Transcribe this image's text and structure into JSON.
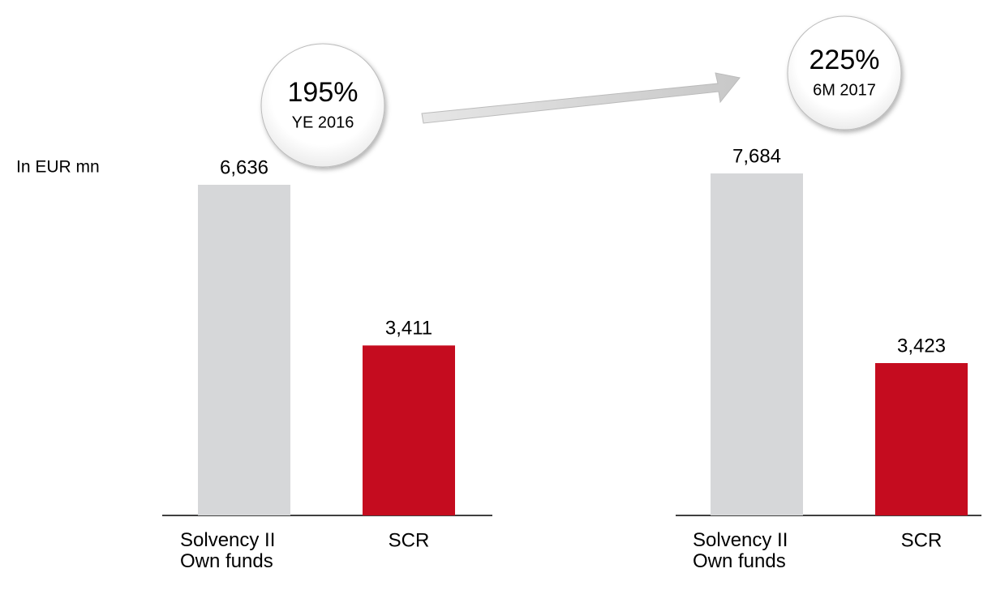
{
  "unit_label": "In EUR mn",
  "chart_data": [
    {
      "type": "bar",
      "categories": [
        "Solvency II Own funds",
        "SCR"
      ],
      "values": [
        6636,
        3411
      ],
      "value_labels": [
        "6,636",
        "3,411"
      ],
      "colors": [
        "#d6d7d9",
        "#c50c1f"
      ],
      "ratio": {
        "value": 195,
        "label": "195%"
      },
      "period": "YE 2016"
    },
    {
      "type": "bar",
      "categories": [
        "Solvency II Own funds",
        "SCR"
      ],
      "values": [
        7684,
        3423
      ],
      "value_labels": [
        "7,684",
        "3,423"
      ],
      "colors": [
        "#d6d7d9",
        "#c50c1f"
      ],
      "ratio": {
        "value": 225,
        "label": "225%"
      },
      "period": "6M 2017"
    }
  ]
}
